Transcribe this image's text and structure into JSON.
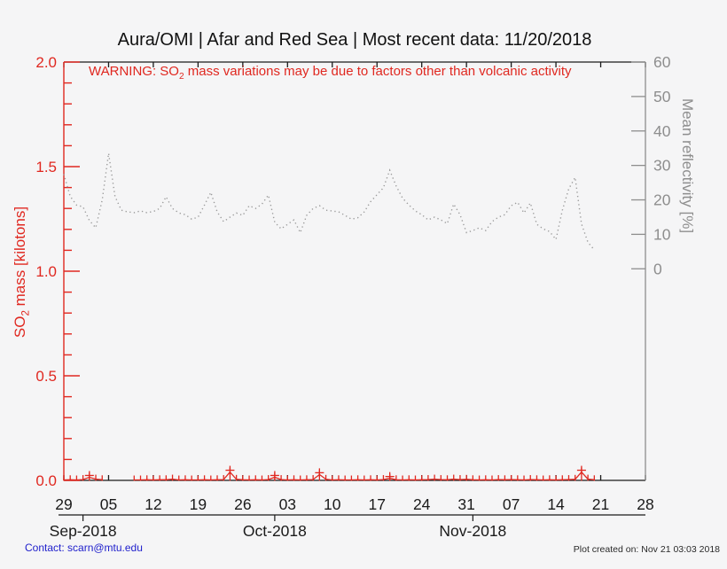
{
  "footer": {
    "contact": "Contact: scarn@mtu.edu",
    "created": "Plot created on: Nov 21 03:03 2018"
  },
  "chart_data": {
    "type": "line",
    "title": "Aura/OMI | Afar and Red Sea | Most recent data: 11/20/2018",
    "warning": {
      "prefix": "WARNING: SO",
      "sub": "2",
      "suffix": " mass variations may be due to factors other than volcanic activity",
      "color": "#e02820"
    },
    "x_axis": {
      "start_date": "2018-08-29",
      "end_date": "2018-11-28",
      "span_days": 91,
      "week_tick_day_offsets": [
        0,
        7,
        14,
        21,
        28,
        35,
        42,
        49,
        56,
        63,
        70,
        77,
        84,
        91
      ],
      "week_tick_labels": [
        "29",
        "05",
        "12",
        "19",
        "26",
        "03",
        "10",
        "17",
        "24",
        "31",
        "07",
        "14",
        "21",
        "28"
      ],
      "month_ticks": [
        {
          "label": "Sep-2018",
          "day_offset": 3
        },
        {
          "label": "Oct-2018",
          "day_offset": 33
        },
        {
          "label": "Nov-2018",
          "day_offset": 64
        }
      ],
      "color": "#1a1a1a"
    },
    "left_axis": {
      "title_prefix": "SO",
      "title_sub": "2",
      "title_suffix": " mass [kilotons]",
      "range": [
        0.0,
        2.0
      ],
      "major_ticks": [
        0.0,
        0.5,
        1.0,
        1.5,
        2.0
      ],
      "major_tick_labels": [
        "0.0",
        "0.5",
        "1.0",
        "1.5",
        "2.0"
      ],
      "minor_tick_step": 0.1,
      "color": "#e02820"
    },
    "right_axis": {
      "title": "Mean reflectivity [%]",
      "range": [
        0,
        60
      ],
      "major_ticks": [
        0,
        10,
        20,
        30,
        40,
        50,
        60
      ],
      "major_tick_labels": [
        "0",
        "10",
        "20",
        "30",
        "40",
        "50",
        "60"
      ],
      "color": "#8e8e8e"
    },
    "series": [
      {
        "name": "so2-mass-kilotons",
        "axis": "left",
        "style": "solid-with-error-ticks",
        "marker": "plus",
        "color": "#e02820",
        "marker_day_offsets": [
          4,
          26,
          33,
          40,
          51,
          81
        ],
        "day_offset_start": 0,
        "values": [
          0.002,
          0.003,
          0.002,
          0.004,
          0.015,
          0.006,
          0.003,
          null,
          null,
          null,
          null,
          0.002,
          0.002,
          0.003,
          0.002,
          0.003,
          0.003,
          0.006,
          0.002,
          0.003,
          0.002,
          0.002,
          0.003,
          0.002,
          0.003,
          0.004,
          0.04,
          0.005,
          0.003,
          0.002,
          0.003,
          0.002,
          0.004,
          0.015,
          0.004,
          0.002,
          0.003,
          0.002,
          0.003,
          0.004,
          0.028,
          0.005,
          0.002,
          0.003,
          0.002,
          0.002,
          0.003,
          0.002,
          0.003,
          0.002,
          0.004,
          0.01,
          0.003,
          0.002,
          0.003,
          0.002,
          0.003,
          0.004,
          0.006,
          0.004,
          0.003,
          0.006,
          0.004,
          0.005,
          0.003,
          0.002,
          0.003,
          0.002,
          0.004,
          0.003,
          0.004,
          0.003,
          0.002,
          0.004,
          0.003,
          0.002,
          0.003,
          0.002,
          0.003,
          0.004,
          0.005,
          0.04,
          0.006,
          0.003
        ]
      },
      {
        "name": "mean-reflectivity-percent",
        "axis": "right",
        "style": "dotted",
        "marker": "none",
        "color": "#9a9a9a",
        "day_offset_start": 0,
        "values": [
          27.5,
          21,
          18.5,
          18,
          14,
          11.9,
          20,
          33.5,
          21,
          17,
          16.5,
          16.3,
          16.8,
          16.3,
          16.6,
          17.5,
          20.9,
          17.5,
          16.2,
          15.7,
          14.4,
          15,
          18.5,
          22.2,
          16.5,
          13.7,
          15,
          16.2,
          15.5,
          18.3,
          17.5,
          18.8,
          21.4,
          13.5,
          11.6,
          12.9,
          14.2,
          10.5,
          15.5,
          17.5,
          18.3,
          17,
          16.8,
          16.5,
          15.5,
          14.4,
          14.8,
          16.5,
          19.5,
          21.5,
          23.5,
          28.6,
          24,
          20.5,
          18.5,
          16.8,
          15.7,
          14.2,
          15,
          14.2,
          13.1,
          18.8,
          15.7,
          10.5,
          11.1,
          11.9,
          11.1,
          13.7,
          15,
          15.7,
          18.3,
          19.3,
          16.2,
          19.1,
          12.9,
          11.6,
          10.8,
          8.5,
          17,
          23.2,
          26.5,
          13,
          7.7,
          5.5
        ]
      }
    ]
  }
}
